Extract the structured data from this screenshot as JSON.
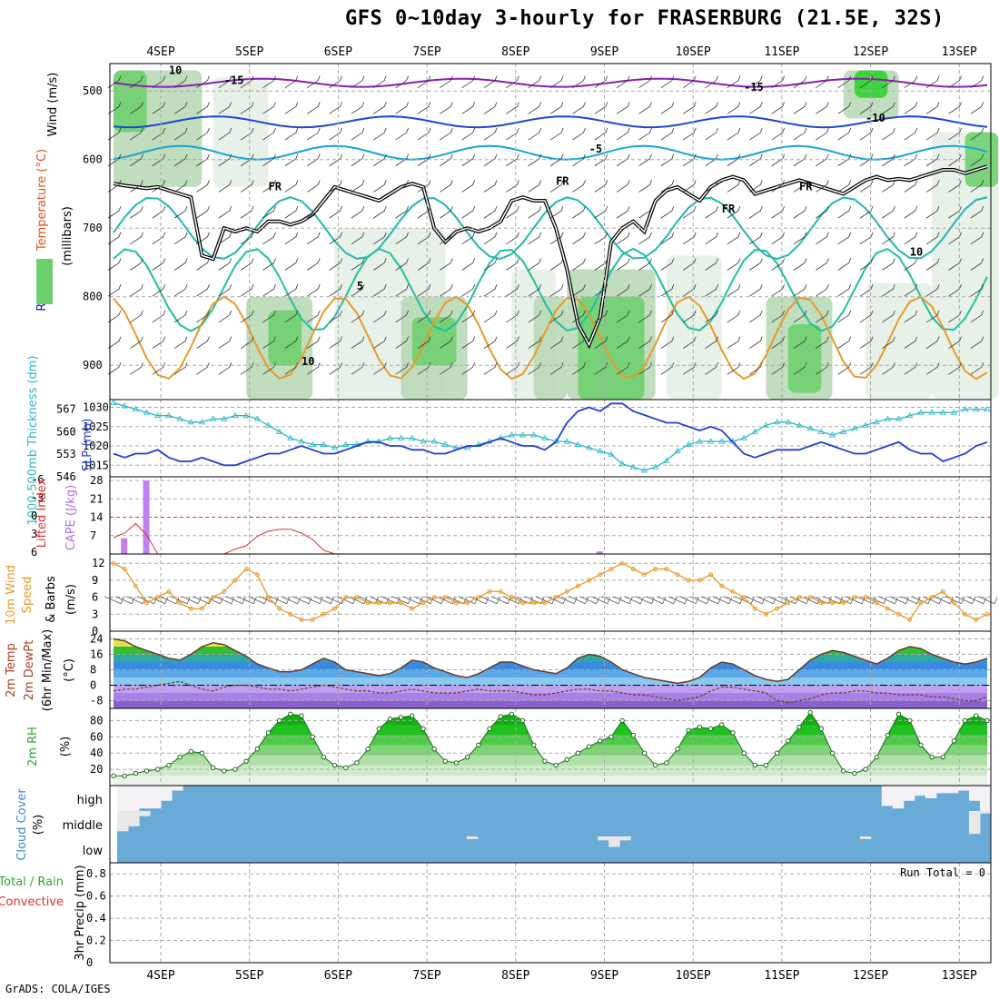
{
  "title": "GFS 0~10day 3-hourly for FRASERBURG (21.5E, 32S)",
  "credit": "GrADS: COLA/IGES",
  "colors": {
    "rh_light": "#e6f0e6",
    "rh_mid": "#b9d9b6",
    "rh_dark": "#6fcf6f",
    "rh_bright": "#2fd12f",
    "slp_line": "#1f3fd1",
    "thickness_line": "#2fb8c8",
    "cape_bar": "#c080f0",
    "lifted_index": "#e03030",
    "wind_speed": "#e89a2a",
    "barbs": "#555555",
    "cloud_fill": "#6aaad6",
    "cloud_clear": "#f3f0f6",
    "temp_line": "#6a3a2a"
  },
  "chart_data": {
    "type": "meteogram",
    "x_labels_top": [
      "4SEP",
      "5SEP",
      "6SEP",
      "7SEP",
      "8SEP",
      "9SEP",
      "10SEP",
      "11SEP",
      "12SEP",
      "13SEP"
    ],
    "x_labels_bottom": [
      "4SEP",
      "5SEP",
      "6SEP",
      "7SEP",
      "8SEP",
      "9SEP",
      "10SEP",
      "11SEP",
      "12SEP",
      "13SEP"
    ],
    "start_hour_offset": 0,
    "steps": 80,
    "panels": {
      "upper_air": {
        "ylabel": [
          "Wind (m/s)",
          "Temperature (°C)",
          "RH (%)",
          "(millibars)"
        ],
        "ylabel_colors": [
          "#000000",
          "#e0501a",
          "#1010c0",
          "#000000"
        ],
        "y_ticks": [
          500,
          600,
          700,
          800,
          900
        ],
        "ylim": [
          460,
          950
        ],
        "contour_labels": [
          "-15",
          "-15",
          "-10",
          "-5",
          "FR",
          "FR",
          "FR",
          "FR",
          "5",
          "10",
          "10",
          "10"
        ],
        "freezing_level_mb": [
          635,
          638,
          640,
          642,
          640,
          645,
          650,
          655,
          740,
          745,
          700,
          705,
          700,
          705,
          690,
          690,
          695,
          690,
          680,
          660,
          640,
          645,
          650,
          655,
          660,
          650,
          640,
          635,
          640,
          700,
          720,
          705,
          700,
          705,
          700,
          690,
          660,
          655,
          660,
          660,
          700,
          760,
          840,
          870,
          830,
          720,
          700,
          690,
          705,
          660,
          645,
          640,
          650,
          660,
          640,
          630,
          625,
          630,
          650,
          645,
          640,
          635,
          630,
          635,
          640,
          645,
          650,
          640,
          630,
          625,
          630,
          628,
          630,
          625,
          620,
          615,
          615,
          620,
          615,
          610
        ]
      },
      "slp_thickness": {
        "ylabel_left": "1000-500mb Thickness (dm)",
        "ylabel_right": "SLP (mb)",
        "thickness_ticks": [
          546,
          553,
          560,
          567
        ],
        "slp_ticks": [
          1015,
          1020,
          1025,
          1030
        ],
        "slp_range": [
          1012,
          1032
        ],
        "thickness_range": [
          546,
          570
        ],
        "slp": [
          1018,
          1017,
          1018,
          1018,
          1019,
          1017,
          1016,
          1016,
          1017,
          1016,
          1015,
          1015,
          1016,
          1017,
          1018,
          1018,
          1019,
          1020,
          1019,
          1018,
          1018,
          1019,
          1020,
          1021,
          1021,
          1020,
          1020,
          1019,
          1019,
          1018,
          1018,
          1019,
          1020,
          1020,
          1021,
          1022,
          1021,
          1020,
          1020,
          1019,
          1021,
          1026,
          1029,
          1030,
          1029,
          1031,
          1031,
          1029,
          1028,
          1027,
          1026,
          1026,
          1025,
          1024,
          1025,
          1024,
          1021,
          1018,
          1017,
          1018,
          1019,
          1019,
          1019,
          1020,
          1021,
          1020,
          1019,
          1018,
          1018,
          1019,
          1020,
          1021,
          1019,
          1018,
          1018,
          1016,
          1017,
          1018,
          1020,
          1021
        ],
        "thickness": [
          569,
          568,
          567,
          566,
          565,
          565,
          564,
          563,
          563,
          564,
          564,
          565,
          565,
          564,
          562,
          560,
          558,
          557,
          556,
          556,
          555,
          556,
          556,
          557,
          557,
          558,
          558,
          558,
          557,
          557,
          556,
          555,
          555,
          556,
          557,
          558,
          559,
          559,
          559,
          558,
          557,
          557,
          556,
          555,
          554,
          553,
          550,
          549,
          548,
          549,
          551,
          554,
          556,
          557,
          557,
          557,
          557,
          558,
          560,
          562,
          563,
          563,
          562,
          561,
          560,
          559,
          560,
          561,
          562,
          563,
          564,
          564,
          565,
          566,
          566,
          566,
          566,
          567,
          567,
          567
        ]
      },
      "cape_li": {
        "ylabel_left": "Lifted Index",
        "ylabel_right": "CAPE (J/kg)",
        "li_ticks": [
          "6",
          "3",
          "0",
          "-3",
          "-6"
        ],
        "cape_ticks": [
          7,
          14,
          21,
          28
        ],
        "cape_range": [
          0,
          28
        ],
        "cape_bars": [
          {
            "step": 1,
            "value": 6
          },
          {
            "step": 3,
            "value": 28
          },
          {
            "step": 44,
            "value": 1
          }
        ],
        "lifted_index": [
          3.2,
          2.5,
          1.0,
          2.8,
          6,
          6,
          6,
          6,
          6,
          6,
          6,
          5,
          4.5,
          3.0,
          2.2,
          1.9,
          1.9,
          2.5,
          3.5,
          5.2,
          6,
          6,
          6,
          6,
          6,
          6,
          6,
          6,
          6,
          6,
          6,
          6,
          6,
          6,
          6,
          6,
          6,
          6,
          6,
          6,
          6,
          6,
          6,
          6,
          6,
          6,
          6,
          6,
          6,
          6,
          6,
          6,
          6,
          6,
          6,
          6,
          6,
          6,
          6,
          6,
          6,
          6,
          6,
          6,
          6,
          6,
          6,
          6,
          6,
          6,
          6,
          6,
          6,
          6,
          6,
          6,
          6,
          6,
          6,
          6
        ]
      },
      "wind10m": {
        "ylabel": [
          "10m Wind",
          "Speed",
          "& Barbs",
          "(m/s)"
        ],
        "y_ticks": [
          0,
          3,
          6,
          9,
          12
        ],
        "ylim": [
          0,
          13
        ],
        "speed": [
          12,
          11,
          8,
          5,
          6,
          7,
          5,
          4,
          4,
          6,
          7,
          9,
          11,
          10,
          6,
          4,
          3,
          2,
          2,
          3,
          4,
          6,
          6,
          5,
          5,
          5,
          5,
          4,
          5,
          6,
          6,
          5,
          5,
          6,
          7,
          7,
          6,
          5,
          5,
          5,
          6,
          7,
          8,
          9,
          10,
          11,
          12,
          11,
          10,
          11,
          11,
          10,
          9,
          9,
          10,
          8,
          7,
          6,
          4,
          3,
          4,
          5,
          6,
          6,
          5,
          5,
          5,
          6,
          6,
          5,
          4,
          3,
          2,
          5,
          6,
          7,
          5,
          3,
          2,
          3
        ]
      },
      "temp2m": {
        "ylabel": [
          "2m Temp",
          "2m DewPt",
          "(6hr Min/Max)",
          "(°C)"
        ],
        "y_ticks": [
          24,
          16,
          8,
          0,
          -8
        ],
        "ylim": [
          -12,
          28
        ],
        "temperature": [
          24,
          23,
          20,
          18,
          16,
          14,
          13,
          16,
          20,
          22,
          21,
          18,
          15,
          11,
          9,
          7,
          7,
          8,
          11,
          14,
          12,
          8,
          7,
          6,
          5,
          6,
          9,
          13,
          12,
          9,
          7,
          5,
          4,
          6,
          9,
          12,
          12,
          10,
          8,
          7,
          6,
          9,
          14,
          16,
          15,
          12,
          8,
          6,
          4,
          3,
          2,
          1,
          2,
          4,
          9,
          12,
          11,
          8,
          5,
          3,
          2,
          3,
          8,
          13,
          16,
          18,
          17,
          15,
          13,
          11,
          14,
          18,
          20,
          19,
          16,
          14,
          12,
          11,
          12,
          14
        ],
        "dewpoint": [
          -3,
          -2,
          -2,
          -1,
          0,
          1,
          2,
          0,
          -2,
          -3,
          -1,
          0,
          0,
          -1,
          -2,
          -2,
          -3,
          -2,
          -1,
          0,
          -1,
          -2,
          -3,
          -3,
          -4,
          -4,
          -3,
          -2,
          -3,
          -4,
          -4,
          -4,
          -3,
          -2,
          -3,
          -3,
          -3,
          -4,
          -5,
          -5,
          -4,
          -3,
          -2,
          -2,
          -3,
          -3,
          -4,
          -5,
          -5,
          -6,
          -7,
          -8,
          -7,
          -6,
          -3,
          -1,
          -1,
          -2,
          -3,
          -4,
          -8,
          -9,
          -8,
          -7,
          -5,
          -4,
          -4,
          -3,
          -3,
          -4,
          -4,
          -5,
          -5,
          -5,
          -6,
          -6,
          -7,
          -8,
          -8,
          -6
        ]
      },
      "rh2m": {
        "ylabel": [
          "2m RH",
          "(%)"
        ],
        "y_ticks": [
          20,
          40,
          60,
          80
        ],
        "ylim": [
          0,
          95
        ],
        "values": [
          12,
          12,
          15,
          18,
          20,
          25,
          35,
          42,
          40,
          22,
          18,
          20,
          30,
          45,
          65,
          80,
          88,
          86,
          60,
          35,
          25,
          22,
          28,
          45,
          70,
          82,
          84,
          86,
          70,
          45,
          30,
          28,
          35,
          50,
          70,
          85,
          88,
          80,
          50,
          30,
          25,
          32,
          40,
          48,
          55,
          60,
          80,
          62,
          40,
          25,
          28,
          45,
          68,
          72,
          70,
          75,
          65,
          40,
          25,
          25,
          40,
          55,
          72,
          90,
          70,
          40,
          18,
          15,
          20,
          35,
          62,
          88,
          80,
          50,
          35,
          35,
          55,
          80,
          86,
          80
        ]
      },
      "cloud": {
        "ylabel": [
          "Cloud Cover",
          "(%)"
        ],
        "level_labels": [
          "high",
          "middle",
          "low"
        ],
        "high_clear_fraction": [
          1,
          1,
          0.9,
          0.9,
          0.6,
          0.2,
          0,
          0,
          0,
          0,
          0,
          0,
          0,
          0,
          0,
          0,
          0,
          0,
          0,
          0,
          0,
          0,
          0,
          0,
          0,
          0,
          0,
          0,
          0,
          0,
          0,
          0,
          0,
          0,
          0,
          0,
          0,
          0,
          0,
          0,
          0,
          0,
          0,
          0,
          0,
          0,
          0,
          0,
          0,
          0,
          0,
          0,
          0,
          0,
          0,
          0,
          0,
          0,
          0,
          0,
          0,
          0,
          0,
          0,
          0,
          0,
          0,
          0,
          0,
          0,
          0.8,
          0.9,
          0.6,
          0.4,
          0.5,
          0.3,
          0.3,
          0.2,
          0.6,
          1
        ],
        "middle_clear_fraction": [
          0.8,
          0.6,
          0.2,
          0,
          0,
          0,
          0,
          0,
          0,
          0,
          0,
          0,
          0,
          0,
          0,
          0,
          0,
          0,
          0,
          0,
          0,
          0,
          0,
          0,
          0,
          0,
          0,
          0,
          0,
          0,
          0,
          0,
          0,
          0,
          0,
          0,
          0,
          0,
          0,
          0,
          0,
          0,
          0,
          0,
          0,
          0,
          0,
          0,
          0,
          0,
          0,
          0,
          0,
          0,
          0,
          0,
          0,
          0,
          0,
          0,
          0,
          0,
          0,
          0,
          0,
          0,
          0,
          0,
          0,
          0,
          0,
          0,
          0,
          0,
          0,
          0,
          0,
          0,
          0.9,
          0.1
        ],
        "low_clear_fraction": [
          0,
          0,
          0,
          0,
          0,
          0,
          0,
          0,
          0,
          0,
          0,
          0,
          0,
          0,
          0,
          0,
          0,
          0,
          0,
          0,
          0,
          0,
          0,
          0,
          0,
          0,
          0,
          0,
          0,
          0,
          0,
          0,
          0.1,
          0,
          0,
          0,
          0,
          0,
          0,
          0,
          0,
          0,
          0,
          0,
          0.15,
          0.4,
          0.15,
          0,
          0,
          0,
          0,
          0,
          0,
          0,
          0,
          0,
          0,
          0,
          0,
          0,
          0,
          0,
          0,
          0,
          0,
          0,
          0,
          0,
          0.1,
          0,
          0,
          0,
          0,
          0,
          0,
          0,
          0,
          0,
          0,
          0
        ]
      },
      "precip": {
        "ylabel_left": [
          "Total / Rain",
          "Convective"
        ],
        "ylabel_left_colors": [
          "#2fa82f",
          "#e03030"
        ],
        "ylabel_right": "3hr Precip (mm)",
        "y_ticks": [
          0,
          0.2,
          0.4,
          0.6,
          0.8
        ],
        "ylim": [
          0,
          0.9
        ],
        "run_total_label": "Run Total = 0",
        "values": []
      }
    }
  }
}
